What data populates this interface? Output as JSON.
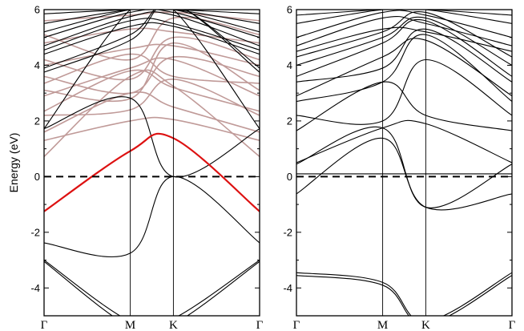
{
  "chart_data": [
    {
      "type": "line",
      "panel": "left",
      "ylabel": "Energy (eV)",
      "ylim": [
        -5,
        6
      ],
      "yticks": [
        -4,
        -2,
        0,
        2,
        4,
        6
      ],
      "x": [
        0,
        1,
        1.5,
        2.5
      ],
      "xticklabels": [
        "Γ",
        "M",
        "K",
        "Γ"
      ],
      "fermi_level": 0,
      "grid": false,
      "colors": {
        "highlight": "#dd1111",
        "faded": "#c09a98",
        "main": "#000000"
      },
      "series": [
        {
          "style": "highlight",
          "values": [
            -1.25,
            0.92,
            1.38,
            -1.25
          ]
        },
        {
          "values": [
            1.72,
            2.82,
            0.0,
            1.72
          ]
        },
        {
          "values": [
            -2.38,
            -2.75,
            0.0,
            -2.38
          ]
        },
        {
          "values": [
            -3.0,
            -5.2,
            -5.1,
            -3.0
          ]
        },
        {
          "values": [
            -3.05,
            -5.4,
            -5.3,
            -3.05
          ]
        },
        {
          "values": [
            1.72,
            6.0,
            6.0,
            1.72
          ]
        },
        {
          "values": [
            3.75,
            4.9,
            6.2,
            3.75
          ]
        },
        {
          "values": [
            3.9,
            5.1,
            6.2,
            3.9
          ]
        },
        {
          "values": [
            4.4,
            5.4,
            5.4,
            4.4
          ]
        },
        {
          "values": [
            4.55,
            5.6,
            5.5,
            4.55
          ]
        },
        {
          "values": [
            4.7,
            5.75,
            5.8,
            4.7
          ]
        },
        {
          "values": [
            5.0,
            5.9,
            5.9,
            5.0
          ]
        },
        {
          "values": [
            5.2,
            6.0,
            6.0,
            5.2
          ]
        },
        {
          "values": [
            5.5,
            6.0,
            6.0,
            5.5
          ]
        },
        {
          "values": [
            5.85,
            6.0,
            6.0,
            5.85
          ]
        },
        {
          "style": "faded",
          "values": [
            0.72,
            3.6,
            3.25,
            0.72
          ]
        },
        {
          "style": "faded",
          "values": [
            1.3,
            2.0,
            2.05,
            1.3
          ]
        },
        {
          "style": "faded",
          "values": [
            1.6,
            3.0,
            2.5,
            1.6
          ]
        },
        {
          "style": "faded",
          "values": [
            2.2,
            2.4,
            3.5,
            2.2
          ]
        },
        {
          "style": "faded",
          "values": [
            2.35,
            3.8,
            3.2,
            2.35
          ]
        },
        {
          "style": "faded",
          "values": [
            2.9,
            3.9,
            4.2,
            2.9
          ]
        },
        {
          "style": "faded",
          "values": [
            3.1,
            2.8,
            4.8,
            3.1
          ]
        },
        {
          "style": "faded",
          "values": [
            3.35,
            4.4,
            3.6,
            3.35
          ]
        },
        {
          "style": "faded",
          "values": [
            3.6,
            3.0,
            4.3,
            3.6
          ]
        },
        {
          "style": "faded",
          "values": [
            4.0,
            4.6,
            4.7,
            4.0
          ]
        },
        {
          "style": "faded",
          "values": [
            4.2,
            3.5,
            5.0,
            4.2
          ]
        },
        {
          "style": "faded",
          "values": [
            4.8,
            5.3,
            5.2,
            4.8
          ]
        },
        {
          "style": "faded",
          "values": [
            5.1,
            4.2,
            5.7,
            5.1
          ]
        },
        {
          "style": "faded",
          "values": [
            5.6,
            5.8,
            5.9,
            5.6
          ]
        }
      ]
    },
    {
      "type": "line",
      "panel": "right",
      "ylim": [
        -5,
        6
      ],
      "yticks": [
        -4,
        -2,
        0,
        2,
        4,
        6
      ],
      "x": [
        0,
        1,
        1.5,
        2.5
      ],
      "xticklabels": [
        "Γ",
        "M",
        "K",
        "Γ"
      ],
      "fermi_level": 0,
      "grid": false,
      "colors": {
        "main": "#000000"
      },
      "series": [
        {
          "values": [
            -0.62,
            1.38,
            -1.1,
            -0.62
          ]
        },
        {
          "values": [
            0.45,
            1.75,
            -1.1,
            0.45
          ]
        },
        {
          "values": [
            0.5,
            1.75,
            1.9,
            0.5
          ]
        },
        {
          "values": [
            -3.45,
            -3.8,
            -5.2,
            -3.45
          ]
        },
        {
          "values": [
            -3.55,
            -3.9,
            -5.3,
            -3.55
          ]
        },
        {
          "values": [
            1.65,
            3.4,
            2.2,
            1.65
          ]
        },
        {
          "values": [
            2.2,
            2.0,
            4.2,
            2.2
          ]
        },
        {
          "values": [
            2.7,
            3.4,
            5.1,
            2.7
          ]
        },
        {
          "values": [
            2.9,
            4.3,
            4.9,
            2.9
          ]
        },
        {
          "values": [
            3.4,
            3.9,
            5.3,
            3.4
          ]
        },
        {
          "values": [
            3.6,
            4.8,
            5.6,
            3.6
          ]
        },
        {
          "values": [
            4.0,
            5.0,
            5.7,
            4.0
          ]
        },
        {
          "values": [
            4.3,
            5.2,
            5.9,
            4.3
          ]
        },
        {
          "values": [
            4.5,
            5.3,
            5.2,
            4.5
          ]
        },
        {
          "values": [
            4.7,
            5.7,
            5.5,
            4.7
          ]
        },
        {
          "values": [
            5.0,
            5.9,
            5.8,
            5.0
          ]
        },
        {
          "values": [
            5.5,
            6.0,
            6.0,
            5.5
          ]
        },
        {
          "values": [
            5.8,
            6.0,
            6.0,
            5.8
          ]
        },
        {
          "values": [
            0.1,
            0.1,
            0.1,
            0.1
          ]
        }
      ]
    }
  ]
}
